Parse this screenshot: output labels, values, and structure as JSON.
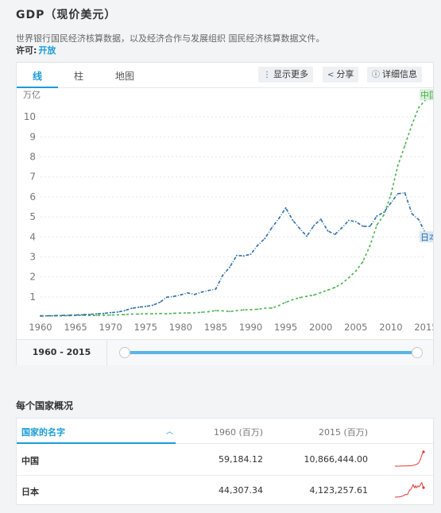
{
  "header": {
    "title": "GDP（现价美元）",
    "description": "世界银行国民经济核算数据，以及经济合作与发展组织 国民经济核算数据文件。",
    "license_label": "许可:",
    "license_value": "开放"
  },
  "tabs": [
    {
      "label": "线",
      "active": true
    },
    {
      "label": "柱",
      "active": false
    },
    {
      "label": "地图",
      "active": false
    }
  ],
  "toolbar": {
    "show_more": {
      "label": "显示更多",
      "icon": "vertical-dots-icon"
    },
    "share": {
      "label": "分享",
      "icon": "share-icon"
    },
    "details": {
      "label": "详细信息",
      "icon": "info-icon"
    }
  },
  "colors": {
    "accent": "#1a9bd7",
    "china": "#4caf50",
    "japan": "#2f6ea8"
  },
  "chart_data": {
    "type": "line",
    "ylabel": "万亿",
    "ylim": [
      0,
      11
    ],
    "yticks": [
      1,
      2,
      3,
      4,
      5,
      6,
      7,
      8,
      9,
      10
    ],
    "xticks": [
      1960,
      1965,
      1970,
      1975,
      1980,
      1985,
      1990,
      1995,
      2000,
      2005,
      2010,
      2015
    ],
    "xlim": [
      1960,
      2015
    ],
    "x": [
      1960,
      1961,
      1962,
      1963,
      1964,
      1965,
      1966,
      1967,
      1968,
      1969,
      1970,
      1971,
      1972,
      1973,
      1974,
      1975,
      1976,
      1977,
      1978,
      1979,
      1980,
      1981,
      1982,
      1983,
      1984,
      1985,
      1986,
      1987,
      1988,
      1989,
      1990,
      1991,
      1992,
      1993,
      1994,
      1995,
      1996,
      1997,
      1998,
      1999,
      2000,
      2001,
      2002,
      2003,
      2004,
      2005,
      2006,
      2007,
      2008,
      2009,
      2010,
      2011,
      2012,
      2013,
      2014,
      2015
    ],
    "series": [
      {
        "name": "中国",
        "label": "中国",
        "color": "#4caf50",
        "dash": "3,3",
        "values": [
          0.06,
          0.05,
          0.05,
          0.05,
          0.06,
          0.07,
          0.08,
          0.07,
          0.07,
          0.08,
          0.09,
          0.1,
          0.11,
          0.14,
          0.14,
          0.16,
          0.15,
          0.17,
          0.15,
          0.18,
          0.19,
          0.2,
          0.2,
          0.23,
          0.26,
          0.31,
          0.3,
          0.27,
          0.31,
          0.35,
          0.36,
          0.38,
          0.43,
          0.44,
          0.56,
          0.73,
          0.86,
          0.96,
          1.03,
          1.09,
          1.21,
          1.34,
          1.47,
          1.66,
          1.96,
          2.29,
          2.75,
          3.55,
          4.59,
          5.1,
          6.1,
          7.57,
          8.56,
          9.61,
          10.48,
          10.87
        ]
      },
      {
        "name": "日本",
        "label": "日本",
        "color": "#2f6ea8",
        "dash": "4,2,1,2",
        "values": [
          0.04,
          0.05,
          0.06,
          0.07,
          0.08,
          0.09,
          0.11,
          0.12,
          0.15,
          0.17,
          0.21,
          0.24,
          0.31,
          0.43,
          0.48,
          0.52,
          0.58,
          0.72,
          0.98,
          1.02,
          1.1,
          1.2,
          1.12,
          1.24,
          1.32,
          1.39,
          2.08,
          2.48,
          3.07,
          3.05,
          3.13,
          3.58,
          3.91,
          4.45,
          4.91,
          5.45,
          4.83,
          4.41,
          4.03,
          4.56,
          4.89,
          4.3,
          4.12,
          4.45,
          4.82,
          4.76,
          4.53,
          4.52,
          5.04,
          5.23,
          5.7,
          6.16,
          6.2,
          5.16,
          4.85,
          4.12
        ]
      }
    ]
  },
  "slider": {
    "range_label": "1960 - 2015",
    "start_year": 1960,
    "end_year": 2015
  },
  "overview": {
    "title": "每个国家概况",
    "columns": [
      "国家的名字",
      "1960 (百万)",
      "2015 (百万)"
    ],
    "sort_icon": "chevron-up-icon",
    "rows": [
      {
        "name": "中国",
        "v1960": "59,184.12",
        "v2015": "10,866,444.00",
        "color": "#e53935"
      },
      {
        "name": "日本",
        "v1960": "44,307.34",
        "v2015": "4,123,257.61",
        "color": "#e53935"
      }
    ]
  }
}
